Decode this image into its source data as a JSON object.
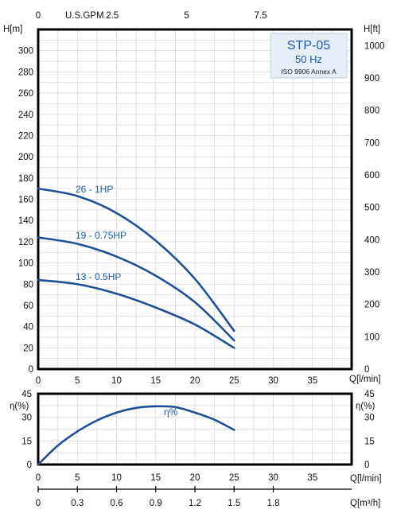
{
  "title_box": {
    "model": "STP-05",
    "freq": "50 Hz",
    "standard": "ISO 9906 Annex A"
  },
  "chart_data": [
    {
      "type": "line",
      "name": "head",
      "xlabel": "Q[l/min]",
      "x_top_label": "U.S.GPM",
      "ylabel_left": "H[m]",
      "ylabel_right": "H[ft]",
      "xlim": [
        0,
        40
      ],
      "ylim": [
        0,
        320
      ],
      "ylim_ft": [
        0,
        1049.87
      ],
      "grid": true,
      "x_ticks": [
        0,
        5,
        10,
        15,
        20,
        25,
        30,
        35
      ],
      "x_top_ticks": [
        "0",
        "2.5",
        "5",
        "7.5"
      ],
      "x_top_tick_values_gpm": [
        0,
        2.5,
        5,
        7.5
      ],
      "y_ticks_left": [
        0,
        20,
        40,
        60,
        80,
        100,
        120,
        140,
        160,
        180,
        200,
        220,
        240,
        260,
        280,
        300
      ],
      "y_ticks_right": [
        0,
        100,
        200,
        300,
        400,
        500,
        600,
        700,
        800,
        900,
        1000
      ],
      "series": [
        {
          "name": "26 - 1HP",
          "x": [
            0,
            5,
            10,
            15,
            20,
            25
          ],
          "y": [
            170,
            163,
            147,
            121,
            85,
            36
          ]
        },
        {
          "name": "19 - 0.75HP",
          "x": [
            0,
            5,
            10,
            15,
            20,
            25
          ],
          "y": [
            124,
            118,
            106,
            88,
            63,
            27
          ]
        },
        {
          "name": "13 - 0.5HP",
          "x": [
            0,
            5,
            10,
            15,
            20,
            25
          ],
          "y": [
            84,
            80,
            71,
            58,
            42,
            20
          ]
        }
      ]
    },
    {
      "type": "line",
      "name": "efficiency",
      "xlabel": "Q[l/min]",
      "ylabel_left": "η(%)",
      "ylabel_right": "η(%)",
      "xlim": [
        0,
        40
      ],
      "ylim": [
        0,
        45
      ],
      "grid": true,
      "x_ticks": [
        0,
        5,
        10,
        15,
        20,
        25,
        30,
        35
      ],
      "y_ticks": [
        0,
        15,
        30,
        45
      ],
      "series": [
        {
          "name": "η%",
          "x": [
            0,
            2.5,
            5,
            7.5,
            10,
            12.5,
            15,
            17.5,
            20,
            22.5,
            25
          ],
          "y": [
            0,
            12,
            21,
            28,
            33,
            36,
            37,
            36.5,
            33,
            28.5,
            22
          ]
        }
      ]
    },
    {
      "type": "line",
      "name": "flow-m3h-axis",
      "xlabel": "Q[m³/h]",
      "x_ticks": [
        "0",
        "0.3",
        "0.6",
        "0.9",
        "1.2",
        "1.5",
        "1.8"
      ],
      "x_tick_values": [
        0,
        0.3,
        0.6,
        0.9,
        1.2,
        1.5,
        1.8
      ],
      "xlim": [
        0,
        2.4
      ]
    }
  ]
}
